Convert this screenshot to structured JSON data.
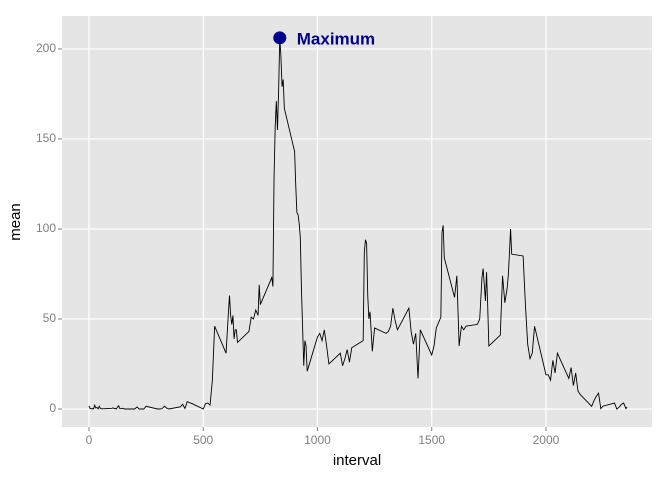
{
  "chart_data": {
    "type": "line",
    "x_label": "interval",
    "y_label": "mean",
    "color": "#000000",
    "xlim": [
      -118,
      2464
    ],
    "ylim": [
      -10,
      218.3
    ],
    "xticks": [
      0,
      500,
      1000,
      1500,
      2000
    ],
    "yticks": [
      0,
      50,
      100,
      150,
      200
    ],
    "grid": true,
    "x": [
      0,
      5,
      10,
      15,
      20,
      25,
      30,
      35,
      40,
      45,
      50,
      55,
      100,
      105,
      110,
      115,
      120,
      125,
      130,
      135,
      140,
      145,
      150,
      155,
      200,
      210,
      220,
      230,
      240,
      250,
      300,
      310,
      320,
      330,
      340,
      350,
      400,
      410,
      420,
      430,
      440,
      450,
      500,
      510,
      520,
      530,
      540,
      550,
      600,
      610,
      615,
      620,
      625,
      630,
      635,
      640,
      645,
      650,
      700,
      710,
      720,
      730,
      740,
      745,
      750,
      800,
      805,
      810,
      815,
      820,
      825,
      830,
      835,
      840,
      845,
      850,
      855,
      900,
      905,
      910,
      915,
      920,
      925,
      930,
      935,
      940,
      945,
      950,
      955,
      1000,
      1010,
      1020,
      1030,
      1040,
      1050,
      1100,
      1110,
      1120,
      1130,
      1140,
      1150,
      1200,
      1205,
      1210,
      1215,
      1220,
      1225,
      1230,
      1240,
      1250,
      1300,
      1310,
      1320,
      1330,
      1340,
      1350,
      1400,
      1410,
      1420,
      1430,
      1440,
      1450,
      1500,
      1510,
      1520,
      1530,
      1540,
      1545,
      1550,
      1555,
      1600,
      1610,
      1620,
      1630,
      1640,
      1650,
      1700,
      1710,
      1720,
      1725,
      1730,
      1735,
      1740,
      1745,
      1750,
      1800,
      1810,
      1820,
      1830,
      1835,
      1840,
      1845,
      1850,
      1900,
      1910,
      1920,
      1930,
      1940,
      1950,
      2000,
      2010,
      2020,
      2030,
      2040,
      2050,
      2100,
      2110,
      2120,
      2130,
      2140,
      2150,
      2200,
      2210,
      2220,
      2230,
      2240,
      2250,
      2300,
      2310,
      2320,
      2330,
      2340,
      2350,
      2355
    ],
    "values": [
      1.7,
      0.3,
      0.1,
      0.2,
      0.1,
      2.1,
      0.5,
      0.9,
      0,
      1.5,
      0.3,
      0.1,
      0.3,
      0.7,
      0.2,
      0.3,
      0,
      1.1,
      1.8,
      0.2,
      0.2,
      0.4,
      0.3,
      0,
      0,
      1.1,
      0,
      0,
      0,
      1.5,
      0,
      0,
      0.2,
      1.6,
      0.5,
      0,
      1.2,
      2.6,
      0.3,
      4.1,
      3.5,
      3.1,
      0,
      3,
      3.3,
      2.1,
      16,
      46,
      31,
      53,
      63,
      52,
      47,
      52,
      39,
      44,
      44,
      37,
      43,
      51,
      50,
      55,
      52,
      69,
      58,
      73,
      68,
      129,
      157,
      171,
      155,
      177,
      206,
      196,
      179,
      183,
      167,
      143,
      124,
      109,
      108,
      103,
      95,
      66,
      45,
      24,
      38,
      35,
      21,
      40,
      42,
      38,
      44,
      35,
      25,
      31,
      24,
      28,
      33,
      26,
      34,
      38,
      87,
      94,
      92,
      63,
      50,
      54,
      32,
      45,
      42,
      43,
      46,
      56,
      49,
      44,
      56,
      43,
      36,
      42,
      17,
      44,
      30,
      35,
      45,
      48,
      51,
      98,
      102,
      84,
      62,
      74,
      35,
      46,
      44,
      46,
      47,
      50,
      73,
      78,
      69,
      60,
      76,
      57,
      35,
      41,
      74,
      59,
      67,
      74,
      86,
      100,
      86,
      85,
      58,
      36,
      28,
      31,
      46,
      19,
      19,
      16,
      27,
      20,
      31,
      17,
      23,
      13,
      20,
      10,
      8,
      1.5,
      4.6,
      7,
      8.8,
      0.2,
      1.6,
      3.3,
      0,
      1,
      2.6,
      3.3,
      0.2,
      1.1
    ],
    "annotations": [
      {
        "text": "Maximum",
        "x": 835,
        "y": 206.17,
        "color": "#00008b"
      }
    ]
  }
}
